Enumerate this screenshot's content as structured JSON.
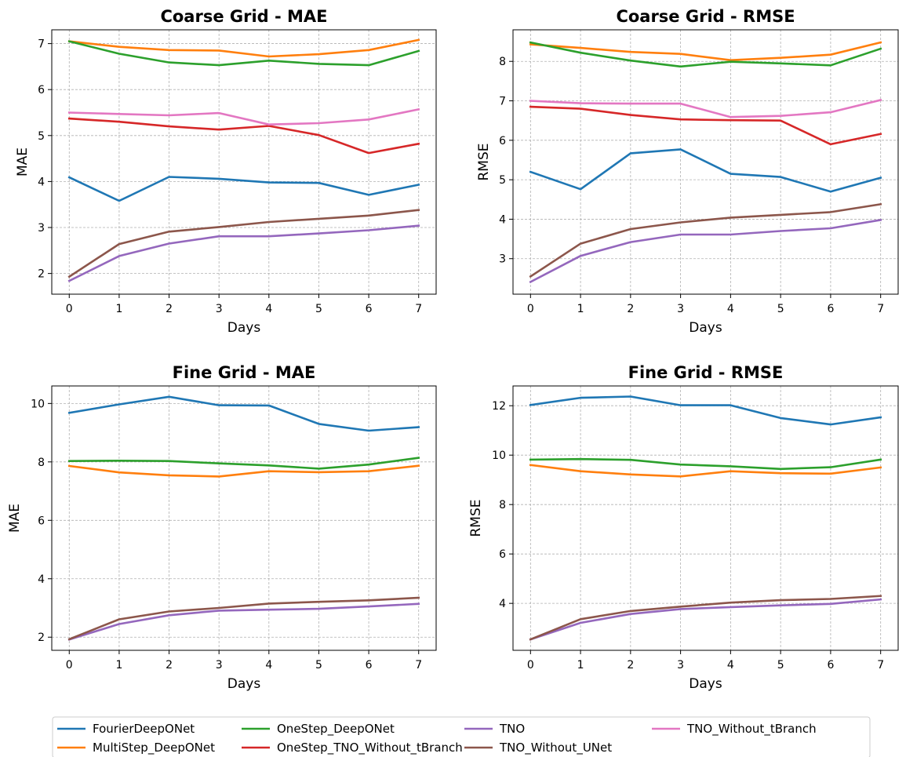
{
  "colors": {
    "FourierDeepONet": "#1f77b4",
    "MultiStep_DeepONet": "#ff7f0e",
    "OneStep_DeepONet": "#2ca02c",
    "OneStep_TNO_Without_tBranch": "#d62728",
    "TNO": "#9467bd",
    "TNO_Without_UNet": "#8c564b",
    "TNO_Without_tBranch": "#e377c2"
  },
  "legend": {
    "position": "bottom-center",
    "entries": [
      "FourierDeepONet",
      "MultiStep_DeepONet",
      "OneStep_DeepONet",
      "OneStep_TNO_Without_tBranch",
      "TNO",
      "TNO_Without_UNet",
      "TNO_Without_tBranch"
    ]
  },
  "chart_data": [
    {
      "type": "line",
      "title": "Coarse Grid - MAE",
      "xlabel": "Days",
      "ylabel": "MAE",
      "x": [
        0,
        1,
        2,
        3,
        4,
        5,
        6,
        7
      ],
      "xticks": [
        0,
        1,
        2,
        3,
        4,
        5,
        6,
        7
      ],
      "yticks": [
        2,
        3,
        4,
        5,
        6,
        7
      ],
      "ylim": [
        1.55,
        7.3
      ],
      "grid": true,
      "series": [
        {
          "name": "FourierDeepONet",
          "values": [
            4.09,
            3.58,
            4.1,
            4.06,
            3.98,
            3.97,
            3.71,
            3.93
          ]
        },
        {
          "name": "MultiStep_DeepONet",
          "values": [
            7.05,
            6.93,
            6.86,
            6.85,
            6.72,
            6.77,
            6.86,
            7.08
          ]
        },
        {
          "name": "OneStep_DeepONet",
          "values": [
            7.05,
            6.78,
            6.59,
            6.53,
            6.63,
            6.56,
            6.53,
            6.84
          ]
        },
        {
          "name": "OneStep_TNO_Without_tBranch",
          "values": [
            5.37,
            5.3,
            5.2,
            5.13,
            5.21,
            5.01,
            4.62,
            4.82
          ]
        },
        {
          "name": "TNO",
          "values": [
            1.84,
            2.38,
            2.65,
            2.81,
            2.81,
            2.87,
            2.94,
            3.04
          ]
        },
        {
          "name": "TNO_Without_UNet",
          "values": [
            1.93,
            2.64,
            2.91,
            3.01,
            3.12,
            3.19,
            3.26,
            3.38
          ]
        },
        {
          "name": "TNO_Without_tBranch",
          "values": [
            5.5,
            5.47,
            5.44,
            5.49,
            5.24,
            5.27,
            5.35,
            5.57
          ]
        }
      ]
    },
    {
      "type": "line",
      "title": "Coarse Grid - RMSE",
      "xlabel": "Days",
      "ylabel": "RMSE",
      "x": [
        0,
        1,
        2,
        3,
        4,
        5,
        6,
        7
      ],
      "xticks": [
        0,
        1,
        2,
        3,
        4,
        5,
        6,
        7
      ],
      "yticks": [
        3,
        4,
        5,
        6,
        7,
        8
      ],
      "ylim": [
        2.1,
        8.8
      ],
      "grid": true,
      "series": [
        {
          "name": "FourierDeepONet",
          "values": [
            5.2,
            4.76,
            5.67,
            5.77,
            5.15,
            5.07,
            4.7,
            5.05
          ]
        },
        {
          "name": "MultiStep_DeepONet",
          "values": [
            8.43,
            8.34,
            8.24,
            8.19,
            8.03,
            8.09,
            8.17,
            8.48
          ]
        },
        {
          "name": "OneStep_DeepONet",
          "values": [
            8.48,
            8.22,
            8.02,
            7.87,
            7.99,
            7.95,
            7.9,
            8.32
          ]
        },
        {
          "name": "OneStep_TNO_Without_tBranch",
          "values": [
            6.85,
            6.8,
            6.64,
            6.53,
            6.51,
            6.5,
            5.9,
            6.16
          ]
        },
        {
          "name": "TNO",
          "values": [
            2.41,
            3.07,
            3.42,
            3.61,
            3.61,
            3.7,
            3.77,
            3.98
          ]
        },
        {
          "name": "TNO_Without_UNet",
          "values": [
            2.55,
            3.38,
            3.75,
            3.92,
            4.04,
            4.11,
            4.18,
            4.38
          ]
        },
        {
          "name": "TNO_Without_tBranch",
          "values": [
            7.0,
            6.94,
            6.93,
            6.93,
            6.59,
            6.62,
            6.71,
            7.02
          ]
        }
      ]
    },
    {
      "type": "line",
      "title": "Fine Grid - MAE",
      "xlabel": "Days",
      "ylabel": "MAE",
      "x": [
        0,
        1,
        2,
        3,
        4,
        5,
        6,
        7
      ],
      "xticks": [
        0,
        1,
        2,
        3,
        4,
        5,
        6,
        7
      ],
      "yticks": [
        2,
        4,
        6,
        8,
        10
      ],
      "ylim": [
        1.55,
        10.6
      ],
      "grid": true,
      "series": [
        {
          "name": "FourierDeepONet",
          "values": [
            9.68,
            9.97,
            10.23,
            9.94,
            9.93,
            9.3,
            9.07,
            9.19
          ]
        },
        {
          "name": "MultiStep_DeepONet",
          "values": [
            7.86,
            7.64,
            7.54,
            7.5,
            7.68,
            7.65,
            7.68,
            7.87
          ]
        },
        {
          "name": "OneStep_DeepONet",
          "values": [
            8.03,
            8.04,
            8.03,
            7.95,
            7.88,
            7.77,
            7.91,
            8.14
          ]
        },
        {
          "name": "TNO",
          "values": [
            1.92,
            2.45,
            2.75,
            2.91,
            2.94,
            2.97,
            3.05,
            3.14
          ]
        },
        {
          "name": "TNO_Without_UNet",
          "values": [
            1.93,
            2.61,
            2.88,
            3.0,
            3.15,
            3.21,
            3.26,
            3.35
          ]
        }
      ]
    },
    {
      "type": "line",
      "title": "Fine Grid - RMSE",
      "xlabel": "Days",
      "ylabel": "RMSE",
      "x": [
        0,
        1,
        2,
        3,
        4,
        5,
        6,
        7
      ],
      "xticks": [
        0,
        1,
        2,
        3,
        4,
        5,
        6,
        7
      ],
      "yticks": [
        4,
        6,
        8,
        10,
        12
      ],
      "ylim": [
        2.1,
        12.8
      ],
      "grid": true,
      "series": [
        {
          "name": "FourierDeepONet",
          "values": [
            12.03,
            12.32,
            12.37,
            12.02,
            12.02,
            11.5,
            11.24,
            11.53
          ]
        },
        {
          "name": "MultiStep_DeepONet",
          "values": [
            9.6,
            9.35,
            9.22,
            9.14,
            9.35,
            9.27,
            9.25,
            9.5
          ]
        },
        {
          "name": "OneStep_DeepONet",
          "values": [
            9.82,
            9.84,
            9.81,
            9.62,
            9.55,
            9.44,
            9.51,
            9.82
          ]
        },
        {
          "name": "TNO",
          "values": [
            2.54,
            3.21,
            3.57,
            3.77,
            3.85,
            3.92,
            3.98,
            4.16
          ]
        },
        {
          "name": "TNO_Without_UNet",
          "values": [
            2.54,
            3.36,
            3.69,
            3.87,
            4.03,
            4.13,
            4.18,
            4.3
          ]
        }
      ]
    }
  ]
}
